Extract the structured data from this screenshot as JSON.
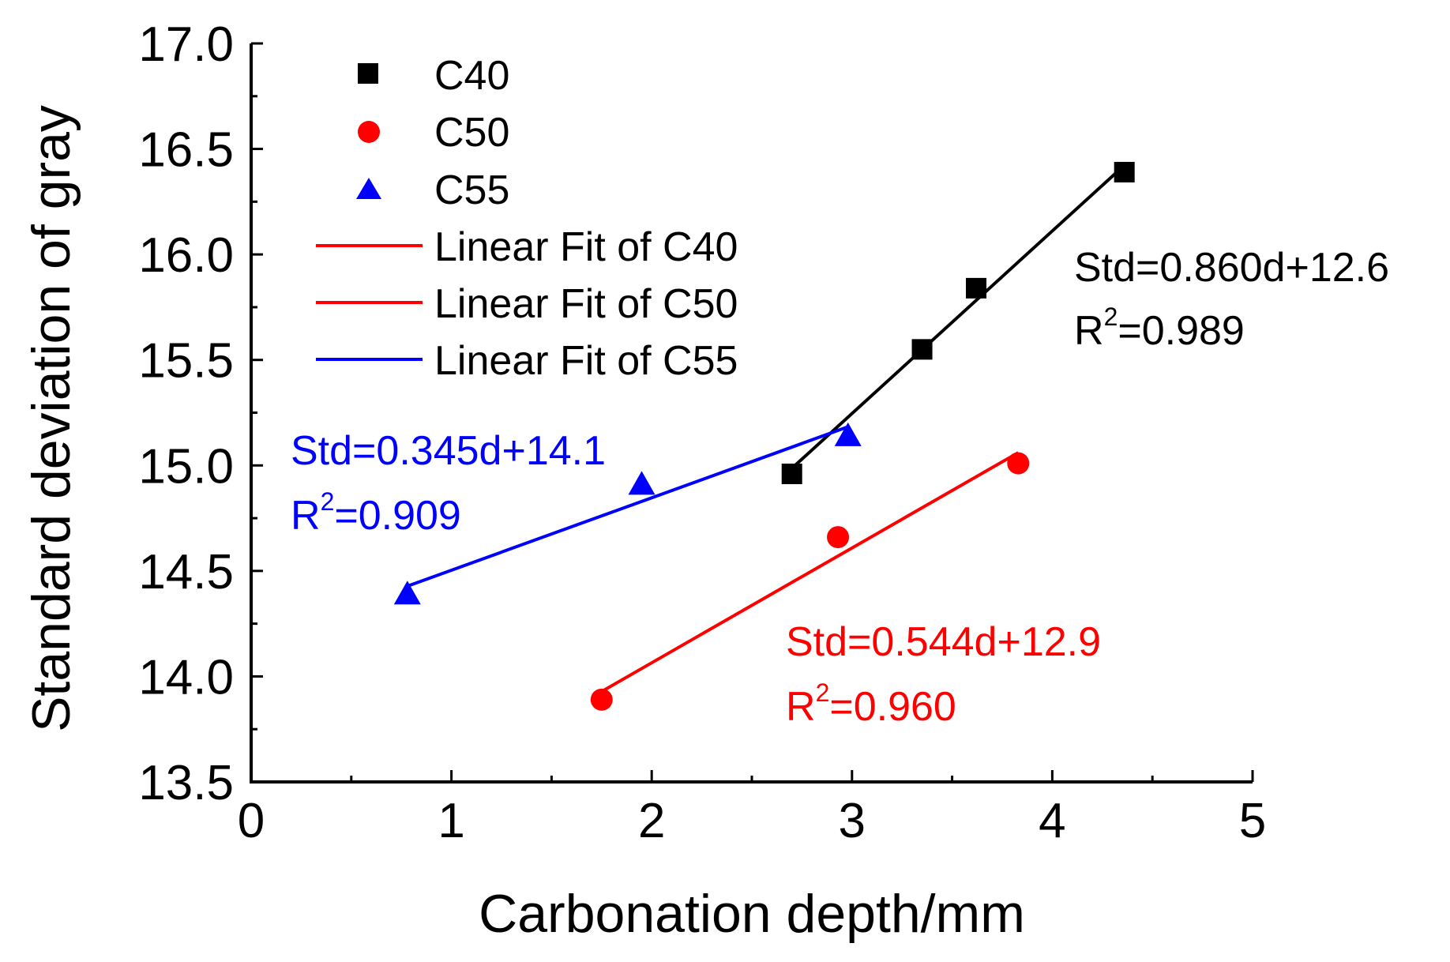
{
  "chart_data": {
    "type": "scatter",
    "title": "",
    "xlabel": "Carbonation depth/mm",
    "ylabel": "Standard deviation of gray",
    "xlim": [
      0,
      5
    ],
    "ylim": [
      13.5,
      17.0
    ],
    "x_ticks": [
      0,
      1,
      2,
      3,
      4,
      5
    ],
    "x_tick_labels": [
      "0",
      "1",
      "2",
      "3",
      "4",
      "5"
    ],
    "y_ticks": [
      13.5,
      14.0,
      14.5,
      15.0,
      15.5,
      16.0,
      16.5,
      17.0
    ],
    "y_tick_labels": [
      "13.5",
      "14.0",
      "14.5",
      "15.0",
      "15.5",
      "16.0",
      "16.5",
      "17.0"
    ],
    "grid": false,
    "legend_position": "top-left",
    "series": [
      {
        "name": "C40",
        "marker": "square",
        "color": "#000000",
        "x": [
          2.7,
          3.35,
          3.62,
          4.36
        ],
        "y": [
          14.96,
          15.55,
          15.84,
          16.39
        ]
      },
      {
        "name": "C50",
        "marker": "circle",
        "color": "#ff0000",
        "x": [
          1.75,
          2.93,
          3.83
        ],
        "y": [
          13.89,
          14.66,
          15.01
        ]
      },
      {
        "name": "C55",
        "marker": "triangle",
        "color": "#0000ff",
        "x": [
          0.78,
          1.95,
          2.98
        ],
        "y": [
          14.39,
          14.91,
          15.14
        ]
      }
    ],
    "fits": [
      {
        "name": "Linear Fit of C40",
        "legend_color": "#ff0000",
        "color": "#000000",
        "x_range": [
          2.7,
          4.36
        ],
        "slope": 0.86,
        "intercept": 12.6,
        "equation": "Std=0.860d+12.6",
        "r2_label": "R",
        "r2_sup": "2",
        "r2_value": "=0.989"
      },
      {
        "name": "Linear Fit of C50",
        "legend_color": "#ff0000",
        "color": "#ff0000",
        "x_range": [
          1.75,
          3.83
        ],
        "slope": 0.544,
        "intercept": 12.9,
        "equation": "Std=0.544d+12.9",
        "r2_label": "R",
        "r2_sup": "2",
        "r2_value": "=0.960"
      },
      {
        "name": "Linear Fit of C55",
        "legend_color": "#0000ff",
        "color": "#0000ff",
        "x_range": [
          0.78,
          2.98
        ],
        "slope": 0.345,
        "intercept": 14.1,
        "equation": "Std=0.345d+14.1",
        "r2_label": "R",
        "r2_sup": "2",
        "r2_value": "=0.909"
      }
    ]
  }
}
